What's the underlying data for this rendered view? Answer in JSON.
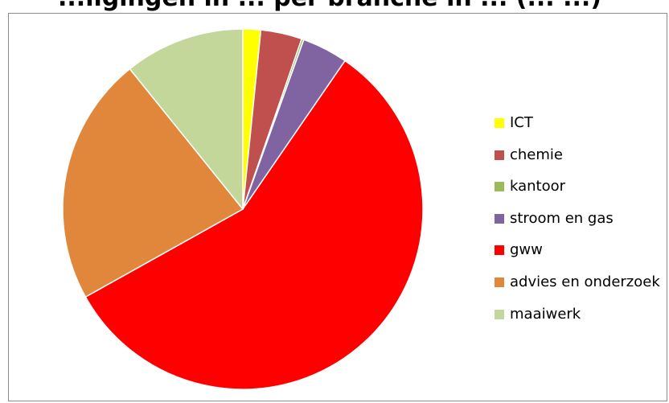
{
  "chart_data": {
    "type": "pie",
    "title": "...ilgingen in ... per branche in ... (... ...)",
    "series": [
      {
        "categories": [
          "ICT",
          "chemie",
          "kantoor",
          "stroom en gas",
          "gww",
          "advies en onderzoek",
          "maaiwerk"
        ],
        "values": [
          1.6,
          3.7,
          0.2,
          4.1,
          57.3,
          22.3,
          10.8
        ]
      }
    ],
    "colors": [
      "#ffff00",
      "#c0504d",
      "#9bbb59",
      "#8064a2",
      "#ff0000",
      "#e0873c",
      "#c4d79b"
    ],
    "start_angle_deg": 0,
    "direction": "clockwise",
    "legend": "right",
    "legend_entries": [
      "ICT",
      "chemie",
      "kantoor",
      "stroom en gas",
      "gww",
      "advies en onderzoek",
      "maaiwerk"
    ]
  }
}
